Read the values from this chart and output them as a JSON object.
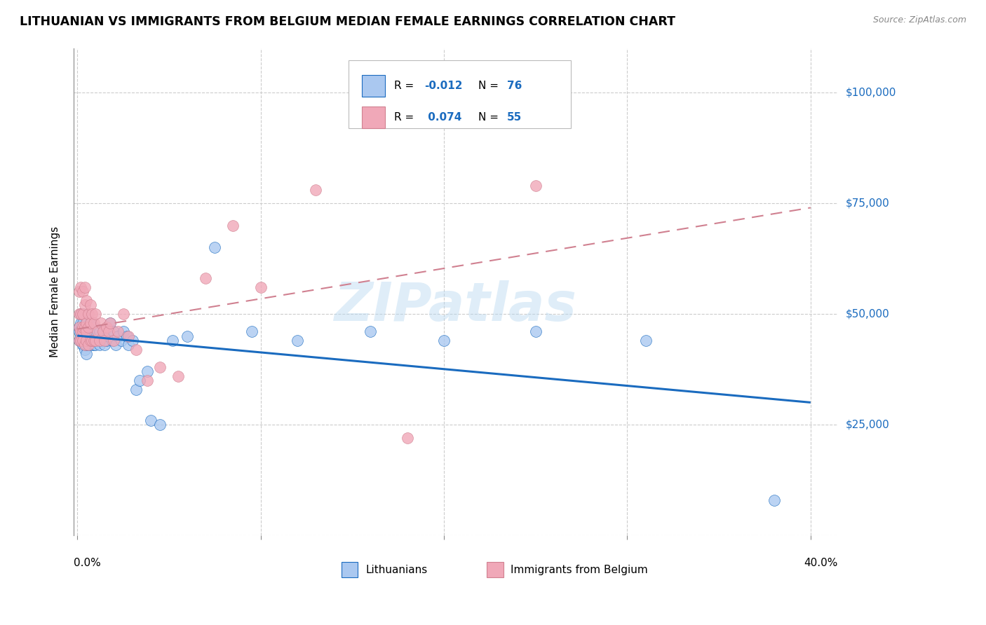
{
  "title": "LITHUANIAN VS IMMIGRANTS FROM BELGIUM MEDIAN FEMALE EARNINGS CORRELATION CHART",
  "source": "Source: ZipAtlas.com",
  "ylabel": "Median Female Earnings",
  "watermark": "ZIPatlas",
  "legend": {
    "series1_label": "Lithuanians",
    "series1_R": "-0.012",
    "series1_N": "76",
    "series1_color": "#aac8f0",
    "series2_label": "Immigrants from Belgium",
    "series2_R": "0.074",
    "series2_N": "55",
    "series2_color": "#f0a8b8"
  },
  "blue_line_color": "#1a6bbf",
  "pink_line_color": "#d08090",
  "grid_color": "#cccccc",
  "background_color": "#ffffff",
  "title_fontsize": 12.5,
  "axis_label_fontsize": 11,
  "tick_fontsize": 11,
  "xlim": [
    0.0,
    0.4
  ],
  "ylim": [
    0,
    110000
  ],
  "yticks": [
    0,
    25000,
    50000,
    75000,
    100000
  ],
  "ytick_labels": [
    "",
    "$25,000",
    "$50,000",
    "$75,000",
    "$100,000"
  ],
  "xtick_labels": [
    "0.0%",
    "",
    "",
    "",
    "40.0%"
  ],
  "blue_scatter_x": [
    0.001,
    0.001,
    0.001,
    0.002,
    0.002,
    0.002,
    0.002,
    0.002,
    0.003,
    0.003,
    0.003,
    0.003,
    0.003,
    0.003,
    0.004,
    0.004,
    0.004,
    0.004,
    0.004,
    0.004,
    0.005,
    0.005,
    0.005,
    0.005,
    0.005,
    0.005,
    0.006,
    0.006,
    0.006,
    0.007,
    0.007,
    0.007,
    0.007,
    0.008,
    0.008,
    0.008,
    0.008,
    0.009,
    0.009,
    0.009,
    0.01,
    0.01,
    0.011,
    0.012,
    0.012,
    0.013,
    0.014,
    0.015,
    0.015,
    0.016,
    0.017,
    0.018,
    0.019,
    0.02,
    0.021,
    0.022,
    0.024,
    0.025,
    0.027,
    0.028,
    0.03,
    0.032,
    0.034,
    0.038,
    0.04,
    0.045,
    0.052,
    0.06,
    0.075,
    0.095,
    0.12,
    0.16,
    0.2,
    0.25,
    0.31,
    0.38
  ],
  "blue_scatter_y": [
    47000,
    44000,
    46000,
    45000,
    46000,
    48000,
    44000,
    50000,
    43000,
    45000,
    46000,
    48000,
    43000,
    50000,
    42000,
    44000,
    46000,
    47000,
    43000,
    45000,
    41000,
    44000,
    47000,
    43000,
    46000,
    48000,
    44000,
    46000,
    43000,
    45000,
    44000,
    46000,
    48000,
    43000,
    45000,
    44000,
    46000,
    43000,
    45000,
    47000,
    43000,
    46000,
    44000,
    43000,
    46000,
    44000,
    45000,
    43000,
    46000,
    44000,
    45000,
    48000,
    44000,
    46000,
    43000,
    45000,
    44000,
    46000,
    45000,
    43000,
    44000,
    33000,
    35000,
    37000,
    26000,
    25000,
    44000,
    45000,
    65000,
    46000,
    44000,
    46000,
    44000,
    46000,
    44000,
    8000
  ],
  "pink_scatter_x": [
    0.001,
    0.001,
    0.001,
    0.001,
    0.002,
    0.002,
    0.002,
    0.002,
    0.003,
    0.003,
    0.003,
    0.003,
    0.003,
    0.004,
    0.004,
    0.004,
    0.004,
    0.005,
    0.005,
    0.005,
    0.005,
    0.006,
    0.006,
    0.006,
    0.007,
    0.007,
    0.007,
    0.008,
    0.008,
    0.009,
    0.009,
    0.01,
    0.01,
    0.011,
    0.012,
    0.013,
    0.014,
    0.015,
    0.016,
    0.017,
    0.018,
    0.02,
    0.022,
    0.025,
    0.028,
    0.032,
    0.038,
    0.045,
    0.055,
    0.07,
    0.085,
    0.1,
    0.13,
    0.18,
    0.25
  ],
  "pink_scatter_y": [
    47000,
    44000,
    50000,
    55000,
    46000,
    50000,
    44000,
    56000,
    46000,
    50000,
    44000,
    47000,
    55000,
    43000,
    47000,
    52000,
    56000,
    44000,
    48000,
    53000,
    46000,
    43000,
    47000,
    50000,
    44000,
    48000,
    52000,
    44000,
    50000,
    44000,
    48000,
    44000,
    50000,
    46000,
    44000,
    48000,
    46000,
    44000,
    47000,
    46000,
    48000,
    44000,
    46000,
    50000,
    45000,
    42000,
    35000,
    38000,
    36000,
    58000,
    70000,
    56000,
    78000,
    22000,
    79000
  ]
}
